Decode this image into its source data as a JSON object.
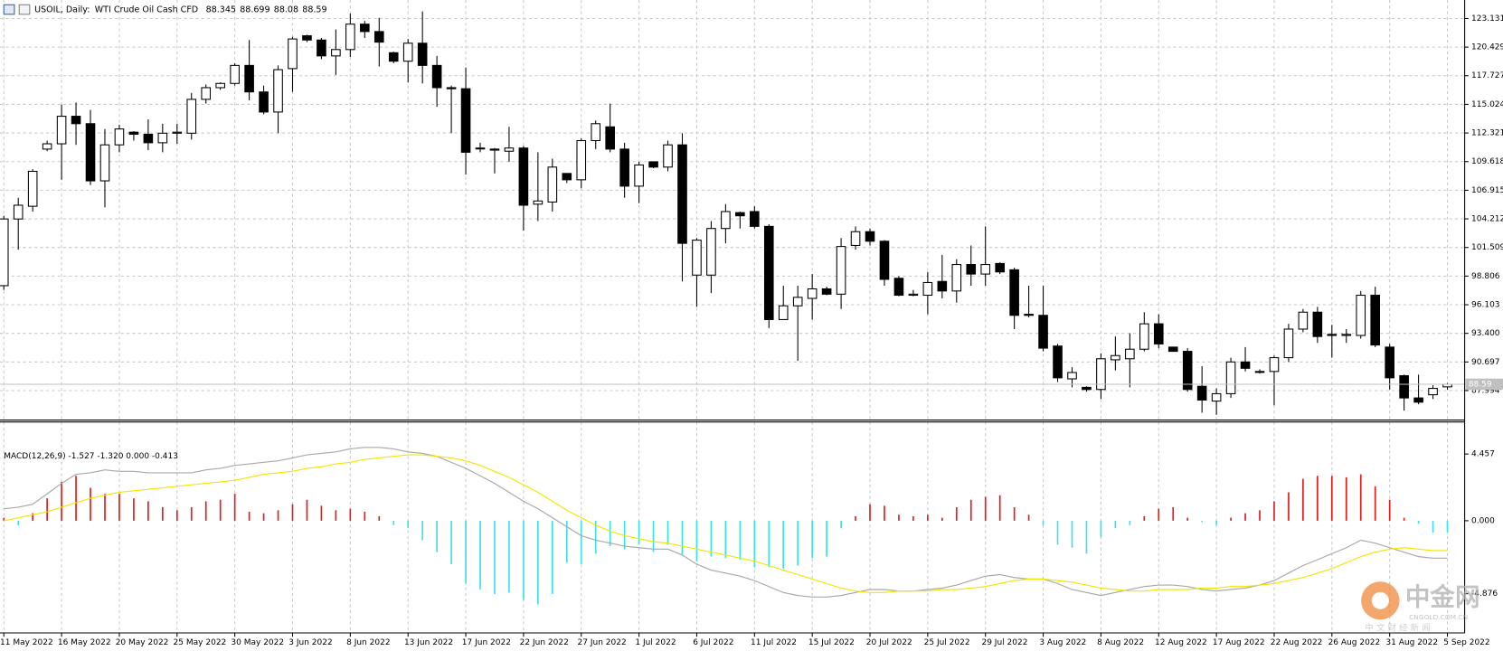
{
  "header": {
    "symbol": "USOIL, Daily:",
    "description": "WTI Crude Oil Cash CFD"
  },
  "watermark": {
    "logo": "中金网",
    "site": "CNGOLD.COM.CN",
    "tagline": "中 文 财 经 新 闻"
  },
  "chart_data": [
    {
      "type": "candlestick",
      "grid": true,
      "up_color": "#ffffff",
      "down_color": "#000000",
      "wick_color": "#000000",
      "price_line_color": "#c0c0c0",
      "categories": [
        "11 May 2022",
        null,
        null,
        null,
        "16 May 2022",
        null,
        null,
        null,
        "20 May 2022",
        null,
        null,
        null,
        "25 May 2022",
        null,
        null,
        null,
        "30 May 2022",
        null,
        null,
        null,
        "3 Jun 2022",
        null,
        null,
        null,
        "8 Jun 2022",
        null,
        null,
        null,
        "13 Jun 2022",
        null,
        null,
        null,
        "17 Jun 2022",
        null,
        null,
        null,
        "22 Jun 2022",
        null,
        null,
        null,
        "27 Jun 2022",
        null,
        null,
        null,
        "1 Jul 2022",
        null,
        null,
        null,
        "6 Jul 2022",
        null,
        null,
        null,
        "11 Jul 2022",
        null,
        null,
        null,
        "15 Jul 2022",
        null,
        null,
        null,
        "20 Jul 2022",
        null,
        null,
        null,
        "25 Jul 2022",
        null,
        null,
        null,
        "29 Jul 2022",
        null,
        null,
        null,
        "3 Aug 2022",
        null,
        null,
        null,
        "8 Aug 2022",
        null,
        null,
        null,
        "12 Aug 2022",
        null,
        null,
        null,
        "17 Aug 2022",
        null,
        null,
        null,
        "22 Aug 2022",
        null,
        null,
        null,
        "26 Aug 2022",
        null,
        null,
        null,
        "31 Aug 2022",
        null,
        null,
        null,
        "5 Sep 2022"
      ],
      "open": [
        97.9,
        104.2,
        105.4,
        110.8,
        111.3,
        113.9,
        113.2,
        107.8,
        111.2,
        112.4,
        112.2,
        111.4,
        112.3,
        112.3,
        115.5,
        116.6,
        117.0,
        118.7,
        116.2,
        114.3,
        118.4,
        121.5,
        121.1,
        119.6,
        120.2,
        122.6,
        121.9,
        119.9,
        119.1,
        120.8,
        118.7,
        116.6,
        116.5,
        110.9,
        110.8,
        110.6,
        110.9,
        105.6,
        105.8,
        108.5,
        107.9,
        111.6,
        112.9,
        110.8,
        107.3,
        109.6,
        109.1,
        111.2,
        98.9,
        98.9,
        103.3,
        104.8,
        104.9,
        103.5,
        94.7,
        96.0,
        96.7,
        97.6,
        97.1,
        101.7,
        103.0,
        102.1,
        98.6,
        97.0,
        97.0,
        98.3,
        97.4,
        99.9,
        99.0,
        100.0,
        99.4,
        95.2,
        95.1,
        92.2,
        89.1,
        88.3,
        88.1,
        90.9,
        91.0,
        91.9,
        94.3,
        92.1,
        91.7,
        88.4,
        87.0,
        87.7,
        90.7,
        89.8,
        89.8,
        91.1,
        93.8,
        95.4,
        93.3,
        93.2,
        93.2,
        97.0,
        92.1,
        89.4,
        87.3,
        87.6,
        88.345
      ],
      "high": [
        104.5,
        106.2,
        108.9,
        111.6,
        115.0,
        115.2,
        114.5,
        112.7,
        113.1,
        112.5,
        113.6,
        113.2,
        113.2,
        116.1,
        116.9,
        117.1,
        118.9,
        121.1,
        116.8,
        118.7,
        121.4,
        121.6,
        121.3,
        122.1,
        123.6,
        122.9,
        123.2,
        120.0,
        121.2,
        123.8,
        119.6,
        116.8,
        118.5,
        111.4,
        110.9,
        112.9,
        111.1,
        110.5,
        109.9,
        108.5,
        111.8,
        113.5,
        115.1,
        111.4,
        109.6,
        109.6,
        111.6,
        112.3,
        102.4,
        104.0,
        105.6,
        104.9,
        105.4,
        103.7,
        97.9,
        97.9,
        99.0,
        97.8,
        102.4,
        103.5,
        103.3,
        102.2,
        98.8,
        97.5,
        99.2,
        100.8,
        100.4,
        101.7,
        103.5,
        100.1,
        99.6,
        97.9,
        97.9,
        92.4,
        90.2,
        88.4,
        91.5,
        93.1,
        93.4,
        95.4,
        95.2,
        92.1,
        92.0,
        90.3,
        88.2,
        91.1,
        92.1,
        90.0,
        91.3,
        94.3,
        95.7,
        95.9,
        94.2,
        93.8,
        97.4,
        97.8,
        92.4,
        89.5,
        89.5,
        88.5,
        88.699
      ],
      "low": [
        97.5,
        101.3,
        104.9,
        110.6,
        107.9,
        111.2,
        107.4,
        105.3,
        110.5,
        111.6,
        110.7,
        110.5,
        111.3,
        111.7,
        115.1,
        116.4,
        116.8,
        115.4,
        114.1,
        112.3,
        116.2,
        120.9,
        119.3,
        117.8,
        119.5,
        121.3,
        118.6,
        118.9,
        117.1,
        117.0,
        114.8,
        112.3,
        108.4,
        110.5,
        108.5,
        109.6,
        103.1,
        104.0,
        104.9,
        107.6,
        107.1,
        110.8,
        110.5,
        106.2,
        105.7,
        109.0,
        108.7,
        98.3,
        95.9,
        97.2,
        101.9,
        103.3,
        103.3,
        93.9,
        94.7,
        90.8,
        94.7,
        97.0,
        95.7,
        101.3,
        101.7,
        97.9,
        96.9,
        96.9,
        95.2,
        96.7,
        96.3,
        97.9,
        97.9,
        99.0,
        93.8,
        94.9,
        91.7,
        88.8,
        88.3,
        87.9,
        87.2,
        89.9,
        88.3,
        91.7,
        92.0,
        91.7,
        87.9,
        85.9,
        85.7,
        87.3,
        89.8,
        89.6,
        86.6,
        90.7,
        93.5,
        92.5,
        91.1,
        92.5,
        92.9,
        92.1,
        88.1,
        86.1,
        86.7,
        87.2,
        88.08
      ],
      "close": [
        104.2,
        105.5,
        108.7,
        111.3,
        113.9,
        113.2,
        107.8,
        111.2,
        112.7,
        112.2,
        111.4,
        112.3,
        112.4,
        115.5,
        116.6,
        117.0,
        118.7,
        116.2,
        114.3,
        118.3,
        121.2,
        121.1,
        119.6,
        120.2,
        122.6,
        121.9,
        120.9,
        119.1,
        120.8,
        118.7,
        116.6,
        116.5,
        110.5,
        110.9,
        110.7,
        110.9,
        105.5,
        105.9,
        109.1,
        107.9,
        111.6,
        113.2,
        110.8,
        107.3,
        109.3,
        109.1,
        111.2,
        101.9,
        102.2,
        103.3,
        104.9,
        104.5,
        103.5,
        94.7,
        96.0,
        96.8,
        97.6,
        97.1,
        101.6,
        103.0,
        102.1,
        98.5,
        97.0,
        97.1,
        98.2,
        97.4,
        99.9,
        99.0,
        99.9,
        99.2,
        95.1,
        95.1,
        92.0,
        89.2,
        89.7,
        88.1,
        91.0,
        91.3,
        91.9,
        94.3,
        92.4,
        91.7,
        88.1,
        87.1,
        87.7,
        90.7,
        90.1,
        89.8,
        91.1,
        93.8,
        95.4,
        93.1,
        93.2,
        93.3,
        97.0,
        92.3,
        89.2,
        87.3,
        86.9,
        88.2,
        88.59
      ],
      "ylim": [
        85.3,
        124.7
      ],
      "yticks": [
        {
          "value": 87.994,
          "label": "87.994"
        },
        90.697,
        {
          "value": 93.4,
          "label": "93.400"
        },
        96.103,
        98.806,
        101.509,
        104.212,
        106.915,
        109.618,
        112.321,
        115.024,
        117.727,
        120.429,
        123.131
      ]
    },
    {
      "type": "macd",
      "label": "MACD(12,26,9) -1.527 -1.320 0.000 -0.413",
      "ylim": [
        -7.5,
        6.6
      ],
      "yticks": [
        {
          "value": -4.876,
          "label": "-4.876"
        },
        {
          "value": 0,
          "label": "0.000"
        },
        4.457
      ],
      "series": [
        {
          "style": "histogram",
          "up_color": "#e02020",
          "down_color": "#40e0e8",
          "values": [
            0.2,
            -0.3,
            0.5,
            1.5,
            2.6,
            3.0,
            2.2,
            1.8,
            1.8,
            1.5,
            1.3,
            0.9,
            0.7,
            0.9,
            1.3,
            1.4,
            1.8,
            0.6,
            0.5,
            0.7,
            1.1,
            1.4,
            1.0,
            0.7,
            0.8,
            0.6,
            0.3,
            -0.3,
            -0.5,
            -1.3,
            -2.1,
            -2.9,
            -4.2,
            -4.6,
            -4.9,
            -4.8,
            -5.3,
            -5.6,
            -4.9,
            -2.8,
            -2.9,
            -2.2,
            -1.7,
            -1.9,
            -1.6,
            -2.1,
            -1.6,
            -2.3,
            -2.7,
            -2.4,
            -2.5,
            -2.6,
            -3.1,
            -3.1,
            -3.2,
            -3.0,
            -2.5,
            -2.4,
            -0.5,
            0.3,
            1.1,
            1.0,
            0.4,
            0.3,
            0.4,
            0.2,
            0.9,
            1.4,
            1.6,
            1.7,
            0.9,
            0.4,
            -0.3,
            -1.6,
            -1.8,
            -2.2,
            -1.1,
            -0.5,
            -0.3,
            0.3,
            0.8,
            0.9,
            0.2,
            -0.1,
            -0.3,
            0.2,
            0.5,
            0.7,
            1.3,
            1.9,
            2.8,
            3.0,
            3.0,
            2.9,
            3.1,
            2.3,
            1.4,
            0.2,
            -0.2,
            -0.8,
            -0.8
          ]
        },
        {
          "style": "line",
          "color": "#a8a8a8",
          "values": [
            0.8,
            0.9,
            1.1,
            1.8,
            2.5,
            3.1,
            3.2,
            3.4,
            3.3,
            3.3,
            3.2,
            3.2,
            3.2,
            3.2,
            3.4,
            3.5,
            3.7,
            3.8,
            3.9,
            4.0,
            4.2,
            4.4,
            4.5,
            4.6,
            4.8,
            4.9,
            4.9,
            4.8,
            4.6,
            4.5,
            4.3,
            3.9,
            3.5,
            3.0,
            2.5,
            1.9,
            1.3,
            0.8,
            0.2,
            -0.4,
            -1.0,
            -1.3,
            -1.5,
            -1.7,
            -1.8,
            -1.9,
            -1.9,
            -2.3,
            -2.9,
            -3.3,
            -3.5,
            -3.7,
            -4.0,
            -4.4,
            -4.8,
            -5.0,
            -5.1,
            -5.1,
            -5.0,
            -4.8,
            -4.6,
            -4.6,
            -4.7,
            -4.7,
            -4.6,
            -4.5,
            -4.3,
            -4.0,
            -3.7,
            -3.6,
            -3.8,
            -3.9,
            -3.9,
            -4.2,
            -4.6,
            -4.8,
            -5.0,
            -4.8,
            -4.6,
            -4.4,
            -4.3,
            -4.3,
            -4.4,
            -4.6,
            -4.7,
            -4.6,
            -4.5,
            -4.3,
            -4.0,
            -3.5,
            -3.0,
            -2.6,
            -2.2,
            -1.8,
            -1.3,
            -1.5,
            -1.8,
            -2.1,
            -2.4,
            -2.5,
            -2.5
          ]
        },
        {
          "style": "line",
          "color": "#f2e600",
          "values": [
            0.0,
            0.2,
            0.4,
            0.6,
            0.9,
            1.2,
            1.5,
            1.7,
            1.9,
            2.0,
            2.1,
            2.2,
            2.3,
            2.4,
            2.5,
            2.6,
            2.7,
            2.9,
            3.1,
            3.2,
            3.3,
            3.5,
            3.6,
            3.8,
            3.9,
            4.1,
            4.2,
            4.3,
            4.4,
            4.4,
            4.3,
            4.2,
            4.0,
            3.7,
            3.3,
            2.9,
            2.4,
            1.9,
            1.3,
            0.7,
            0.2,
            -0.3,
            -0.7,
            -1.0,
            -1.2,
            -1.4,
            -1.5,
            -1.7,
            -1.9,
            -2.1,
            -2.3,
            -2.5,
            -2.7,
            -3.0,
            -3.3,
            -3.6,
            -3.9,
            -4.2,
            -4.5,
            -4.7,
            -4.8,
            -4.8,
            -4.7,
            -4.7,
            -4.7,
            -4.6,
            -4.6,
            -4.5,
            -4.4,
            -4.2,
            -4.0,
            -3.9,
            -3.9,
            -4.0,
            -4.1,
            -4.3,
            -4.5,
            -4.6,
            -4.7,
            -4.7,
            -4.6,
            -4.6,
            -4.6,
            -4.5,
            -4.5,
            -4.4,
            -4.4,
            -4.3,
            -4.2,
            -4.0,
            -3.8,
            -3.5,
            -3.2,
            -2.8,
            -2.4,
            -2.1,
            -1.9,
            -1.8,
            -1.9,
            -2.0,
            -2.0
          ]
        }
      ]
    }
  ]
}
